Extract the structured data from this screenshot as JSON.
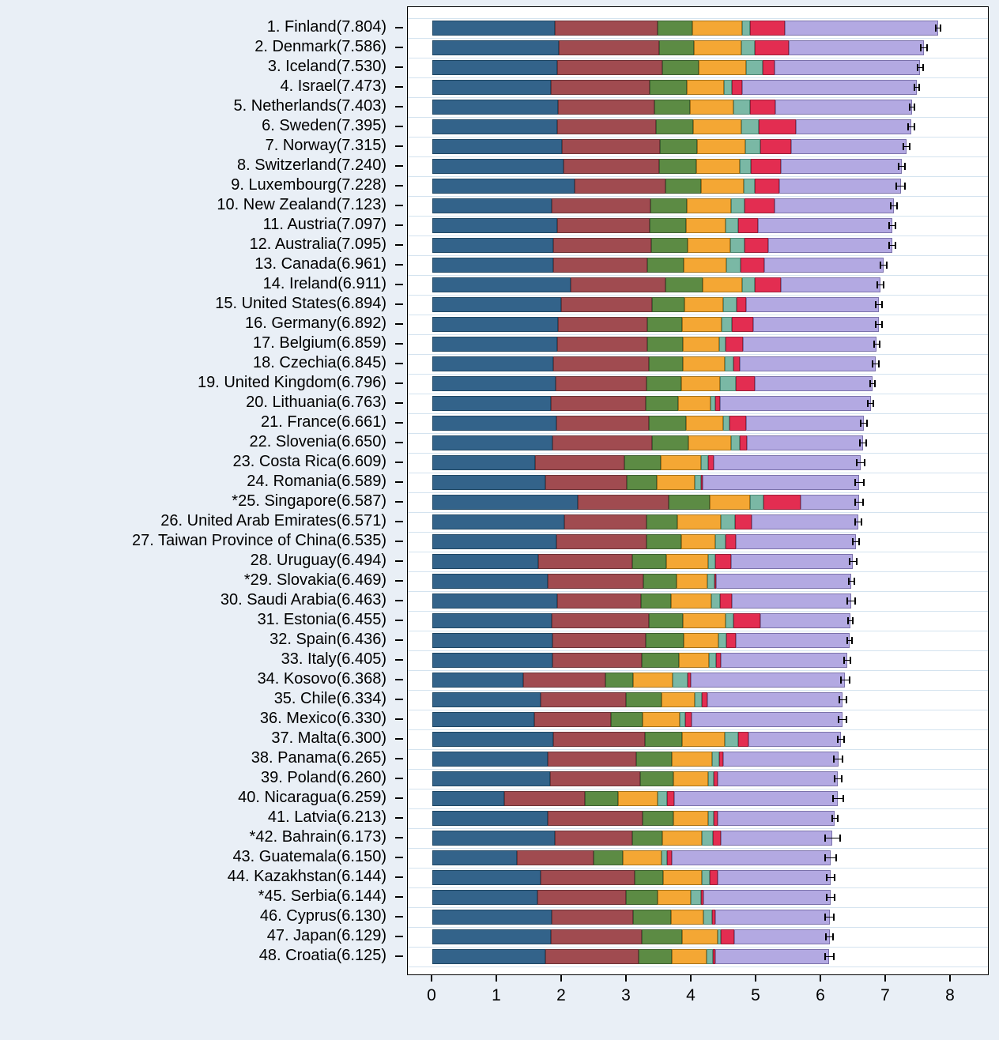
{
  "chart_data": {
    "type": "bar",
    "subtype": "horizontal-stacked-with-error-bars",
    "title": "",
    "xlabel": "",
    "ylabel": "",
    "xlim": [
      0,
      8.6
    ],
    "x_ticks": [
      "0",
      "1",
      "2",
      "3",
      "4",
      "5",
      "6",
      "7",
      "8"
    ],
    "grid": "horizontal-light-blue-rows",
    "legend_position": "none-visible",
    "colors": {
      "background": "#e9eff6",
      "plot_background": "#ffffff",
      "frame": "#000000",
      "gridline": "#d4e3ef",
      "error_bar": "#000000"
    },
    "series": [
      {
        "name": "dark-blue-segment",
        "color": "#33638a",
        "border": "#1f4764"
      },
      {
        "name": "maroon-segment",
        "color": "#a04b50",
        "border": "#6d3236"
      },
      {
        "name": "green-segment",
        "color": "#5c8b44",
        "border": "#3d6030"
      },
      {
        "name": "orange-segment",
        "color": "#f4a734",
        "border": "#a87216"
      },
      {
        "name": "teal-segment",
        "color": "#7ab8a5",
        "border": "#4d8774"
      },
      {
        "name": "crimson-segment",
        "color": "#e32d51",
        "border": "#9a1d38"
      },
      {
        "name": "lavender-segment",
        "color": "#b3a9e2",
        "border": "#7b72ab"
      }
    ],
    "countries": [
      {
        "label": "1. Finland(7.804)",
        "score": 7.804,
        "ci": 0.05,
        "values": [
          1.888,
          1.585,
          0.535,
          0.772,
          0.126,
          0.535,
          2.363
        ]
      },
      {
        "label": "2. Denmark(7.586)",
        "score": 7.586,
        "ci": 0.06,
        "values": [
          1.949,
          1.548,
          0.537,
          0.734,
          0.208,
          0.525,
          2.085
        ]
      },
      {
        "label": "3. Iceland(7.530)",
        "score": 7.53,
        "ci": 0.06,
        "values": [
          1.926,
          1.62,
          0.559,
          0.738,
          0.25,
          0.187,
          2.25
        ]
      },
      {
        "label": "4. Israel(7.473)",
        "score": 7.473,
        "ci": 0.05,
        "values": [
          1.833,
          1.521,
          0.577,
          0.569,
          0.124,
          0.158,
          2.691
        ]
      },
      {
        "label": "5. Netherlands(7.403)",
        "score": 7.403,
        "ci": 0.05,
        "values": [
          1.942,
          1.488,
          0.545,
          0.672,
          0.251,
          0.394,
          2.111
        ]
      },
      {
        "label": "6. Sweden(7.395)",
        "score": 7.395,
        "ci": 0.06,
        "values": [
          1.921,
          1.528,
          0.57,
          0.754,
          0.26,
          0.575,
          1.787
        ]
      },
      {
        "label": "7. Norway(7.315)",
        "score": 7.315,
        "ci": 0.06,
        "values": [
          1.997,
          1.521,
          0.562,
          0.754,
          0.225,
          0.483,
          1.773
        ]
      },
      {
        "label": "8. Switzerland(7.240)",
        "score": 7.24,
        "ci": 0.06,
        "values": [
          2.026,
          1.471,
          0.582,
          0.661,
          0.173,
          0.461,
          1.866
        ]
      },
      {
        "label": "9. Luxembourg(7.228)",
        "score": 7.228,
        "ci": 0.08,
        "values": [
          2.2,
          1.393,
          0.557,
          0.653,
          0.168,
          0.382,
          1.875
        ]
      },
      {
        "label": "10. New Zealand(7.123)",
        "score": 7.123,
        "ci": 0.06,
        "values": [
          1.845,
          1.527,
          0.554,
          0.679,
          0.217,
          0.461,
          1.84
        ]
      },
      {
        "label": "11. Austria(7.097)",
        "score": 7.097,
        "ci": 0.06,
        "values": [
          1.929,
          1.428,
          0.555,
          0.611,
          0.191,
          0.31,
          2.073
        ]
      },
      {
        "label": "12. Australia(7.095)",
        "score": 7.095,
        "ci": 0.06,
        "values": [
          1.871,
          1.508,
          0.562,
          0.661,
          0.219,
          0.362,
          1.912
        ]
      },
      {
        "label": "13. Canada(6.961)",
        "score": 6.961,
        "ci": 0.06,
        "values": [
          1.862,
          1.461,
          0.559,
          0.657,
          0.217,
          0.368,
          1.837
        ]
      },
      {
        "label": "14. Ireland(6.911)",
        "score": 6.911,
        "ci": 0.06,
        "values": [
          2.129,
          1.473,
          0.564,
          0.617,
          0.198,
          0.393,
          1.537
        ]
      },
      {
        "label": "15. United States(6.894)",
        "score": 6.894,
        "ci": 0.06,
        "values": [
          1.982,
          1.404,
          0.502,
          0.597,
          0.208,
          0.153,
          2.048
        ]
      },
      {
        "label": "16. Germany(6.892)",
        "score": 6.892,
        "ci": 0.06,
        "values": [
          1.938,
          1.375,
          0.545,
          0.601,
          0.169,
          0.329,
          1.935
        ]
      },
      {
        "label": "17. Belgium(6.859)",
        "score": 6.859,
        "ci": 0.05,
        "values": [
          1.923,
          1.395,
          0.552,
          0.552,
          0.107,
          0.259,
          2.071
        ]
      },
      {
        "label": "18. Czechia(6.845)",
        "score": 6.845,
        "ci": 0.06,
        "values": [
          1.867,
          1.47,
          0.523,
          0.656,
          0.136,
          0.094,
          2.099
        ]
      },
      {
        "label": "19. United Kingdom(6.796)",
        "score": 6.796,
        "ci": 0.05,
        "values": [
          1.9,
          1.405,
          0.542,
          0.595,
          0.239,
          0.29,
          1.825
        ]
      },
      {
        "label": "20. Lithuania(6.763)",
        "score": 6.763,
        "ci": 0.06,
        "values": [
          1.829,
          1.469,
          0.497,
          0.497,
          0.069,
          0.08,
          2.322
        ]
      },
      {
        "label": "21. France(6.661)",
        "score": 6.661,
        "ci": 0.06,
        "values": [
          1.914,
          1.425,
          0.577,
          0.577,
          0.094,
          0.253,
          1.821
        ]
      },
      {
        "label": "22. Slovenia(6.650)",
        "score": 6.65,
        "ci": 0.06,
        "values": [
          1.858,
          1.531,
          0.557,
          0.668,
          0.131,
          0.11,
          1.795
        ]
      },
      {
        "label": "23. Costa Rica(6.609)",
        "score": 6.609,
        "ci": 0.07,
        "values": [
          1.582,
          1.379,
          0.558,
          0.632,
          0.109,
          0.085,
          2.264
        ]
      },
      {
        "label": "24. Romania(6.589)",
        "score": 6.589,
        "ci": 0.08,
        "values": [
          1.743,
          1.255,
          0.47,
          0.584,
          0.094,
          0.023,
          2.42
        ]
      },
      {
        "label": "*25. Singapore(6.587)",
        "score": 6.587,
        "ci": 0.07,
        "values": [
          2.238,
          1.412,
          0.626,
          0.628,
          0.205,
          0.578,
          0.9
        ]
      },
      {
        "label": "26. United Arab Emirates(6.571)",
        "score": 6.571,
        "ci": 0.06,
        "values": [
          2.041,
          1.258,
          0.48,
          0.67,
          0.22,
          0.262,
          1.64
        ]
      },
      {
        "label": "27. Taiwan Province of China(6.535)",
        "score": 6.535,
        "ci": 0.06,
        "values": [
          1.92,
          1.389,
          0.534,
          0.523,
          0.153,
          0.169,
          1.847
        ]
      },
      {
        "label": "28. Uruguay(6.494)",
        "score": 6.494,
        "ci": 0.07,
        "values": [
          1.64,
          1.443,
          0.524,
          0.646,
          0.111,
          0.248,
          1.882
        ]
      },
      {
        "label": "*29. Slovakia(6.469)",
        "score": 6.469,
        "ci": 0.06,
        "values": [
          1.775,
          1.487,
          0.506,
          0.479,
          0.106,
          0.025,
          2.091
        ]
      },
      {
        "label": "30. Saudi Arabia(6.463)",
        "score": 6.463,
        "ci": 0.07,
        "values": [
          1.931,
          1.293,
          0.46,
          0.626,
          0.124,
          0.189,
          1.84
        ]
      },
      {
        "label": "31. Estonia(6.455)",
        "score": 6.455,
        "ci": 0.05,
        "values": [
          1.847,
          1.49,
          0.524,
          0.66,
          0.126,
          0.42,
          1.388
        ]
      },
      {
        "label": "32. Spain(6.436)",
        "score": 6.436,
        "ci": 0.05,
        "values": [
          1.849,
          1.442,
          0.582,
          0.544,
          0.123,
          0.147,
          1.749
        ]
      },
      {
        "label": "33. Italy(6.405)",
        "score": 6.405,
        "ci": 0.06,
        "values": [
          1.855,
          1.371,
          0.578,
          0.467,
          0.106,
          0.075,
          1.953
        ]
      },
      {
        "label": "34. Kosovo(6.368)",
        "score": 6.368,
        "ci": 0.08,
        "values": [
          1.402,
          1.263,
          0.431,
          0.615,
          0.224,
          0.048,
          2.385
        ]
      },
      {
        "label": "35. Chile(6.334)",
        "score": 6.334,
        "ci": 0.07,
        "values": [
          1.676,
          1.312,
          0.548,
          0.508,
          0.113,
          0.092,
          2.085
        ]
      },
      {
        "label": "36. Mexico(6.330)",
        "score": 6.33,
        "ci": 0.07,
        "values": [
          1.568,
          1.184,
          0.498,
          0.568,
          0.087,
          0.092,
          2.333
        ]
      },
      {
        "label": "37. Malta(6.300)",
        "score": 6.3,
        "ci": 0.06,
        "values": [
          1.871,
          1.411,
          0.576,
          0.655,
          0.206,
          0.165,
          1.416
        ]
      },
      {
        "label": "38. Panama(6.265)",
        "score": 6.265,
        "ci": 0.08,
        "values": [
          1.782,
          1.363,
          0.546,
          0.625,
          0.106,
          0.069,
          1.774
        ]
      },
      {
        "label": "39. Poland(6.260)",
        "score": 6.26,
        "ci": 0.07,
        "values": [
          1.82,
          1.386,
          0.515,
          0.533,
          0.091,
          0.055,
          1.86
        ]
      },
      {
        "label": "40. Nicaragua(6.259)",
        "score": 6.259,
        "ci": 0.09,
        "values": [
          1.106,
          1.252,
          0.507,
          0.615,
          0.143,
          0.115,
          2.521
        ]
      },
      {
        "label": "41. Latvia(6.213)",
        "score": 6.213,
        "ci": 0.06,
        "values": [
          1.775,
          1.47,
          0.473,
          0.535,
          0.091,
          0.064,
          1.805
        ]
      },
      {
        "label": "*42. Bahrain(6.173)",
        "score": 6.173,
        "ci": 0.13,
        "values": [
          1.892,
          1.194,
          0.46,
          0.615,
          0.171,
          0.125,
          1.716
        ]
      },
      {
        "label": "43. Guatemala(6.150)",
        "score": 6.15,
        "ci": 0.1,
        "values": [
          1.31,
          1.175,
          0.449,
          0.605,
          0.089,
          0.073,
          2.449
        ]
      },
      {
        "label": "44. Kazakhstan(6.144)",
        "score": 6.144,
        "ci": 0.07,
        "values": [
          1.676,
          1.446,
          0.443,
          0.596,
          0.121,
          0.117,
          1.745
        ]
      },
      {
        "label": "*45. Serbia(6.144)",
        "score": 6.144,
        "ci": 0.07,
        "values": [
          1.622,
          1.368,
          0.482,
          0.519,
          0.16,
          0.035,
          1.958
        ]
      },
      {
        "label": "46. Cyprus(6.130)",
        "score": 6.13,
        "ci": 0.08,
        "values": [
          1.844,
          1.259,
          0.574,
          0.502,
          0.141,
          0.051,
          1.759
        ]
      },
      {
        "label": "47. Japan(6.129)",
        "score": 6.129,
        "ci": 0.07,
        "values": [
          1.826,
          1.402,
          0.621,
          0.556,
          0.049,
          0.206,
          1.469
        ]
      },
      {
        "label": "48. Croatia(6.125)",
        "score": 6.125,
        "ci": 0.08,
        "values": [
          1.742,
          1.436,
          0.523,
          0.534,
          0.094,
          0.042,
          1.754
        ]
      }
    ]
  }
}
